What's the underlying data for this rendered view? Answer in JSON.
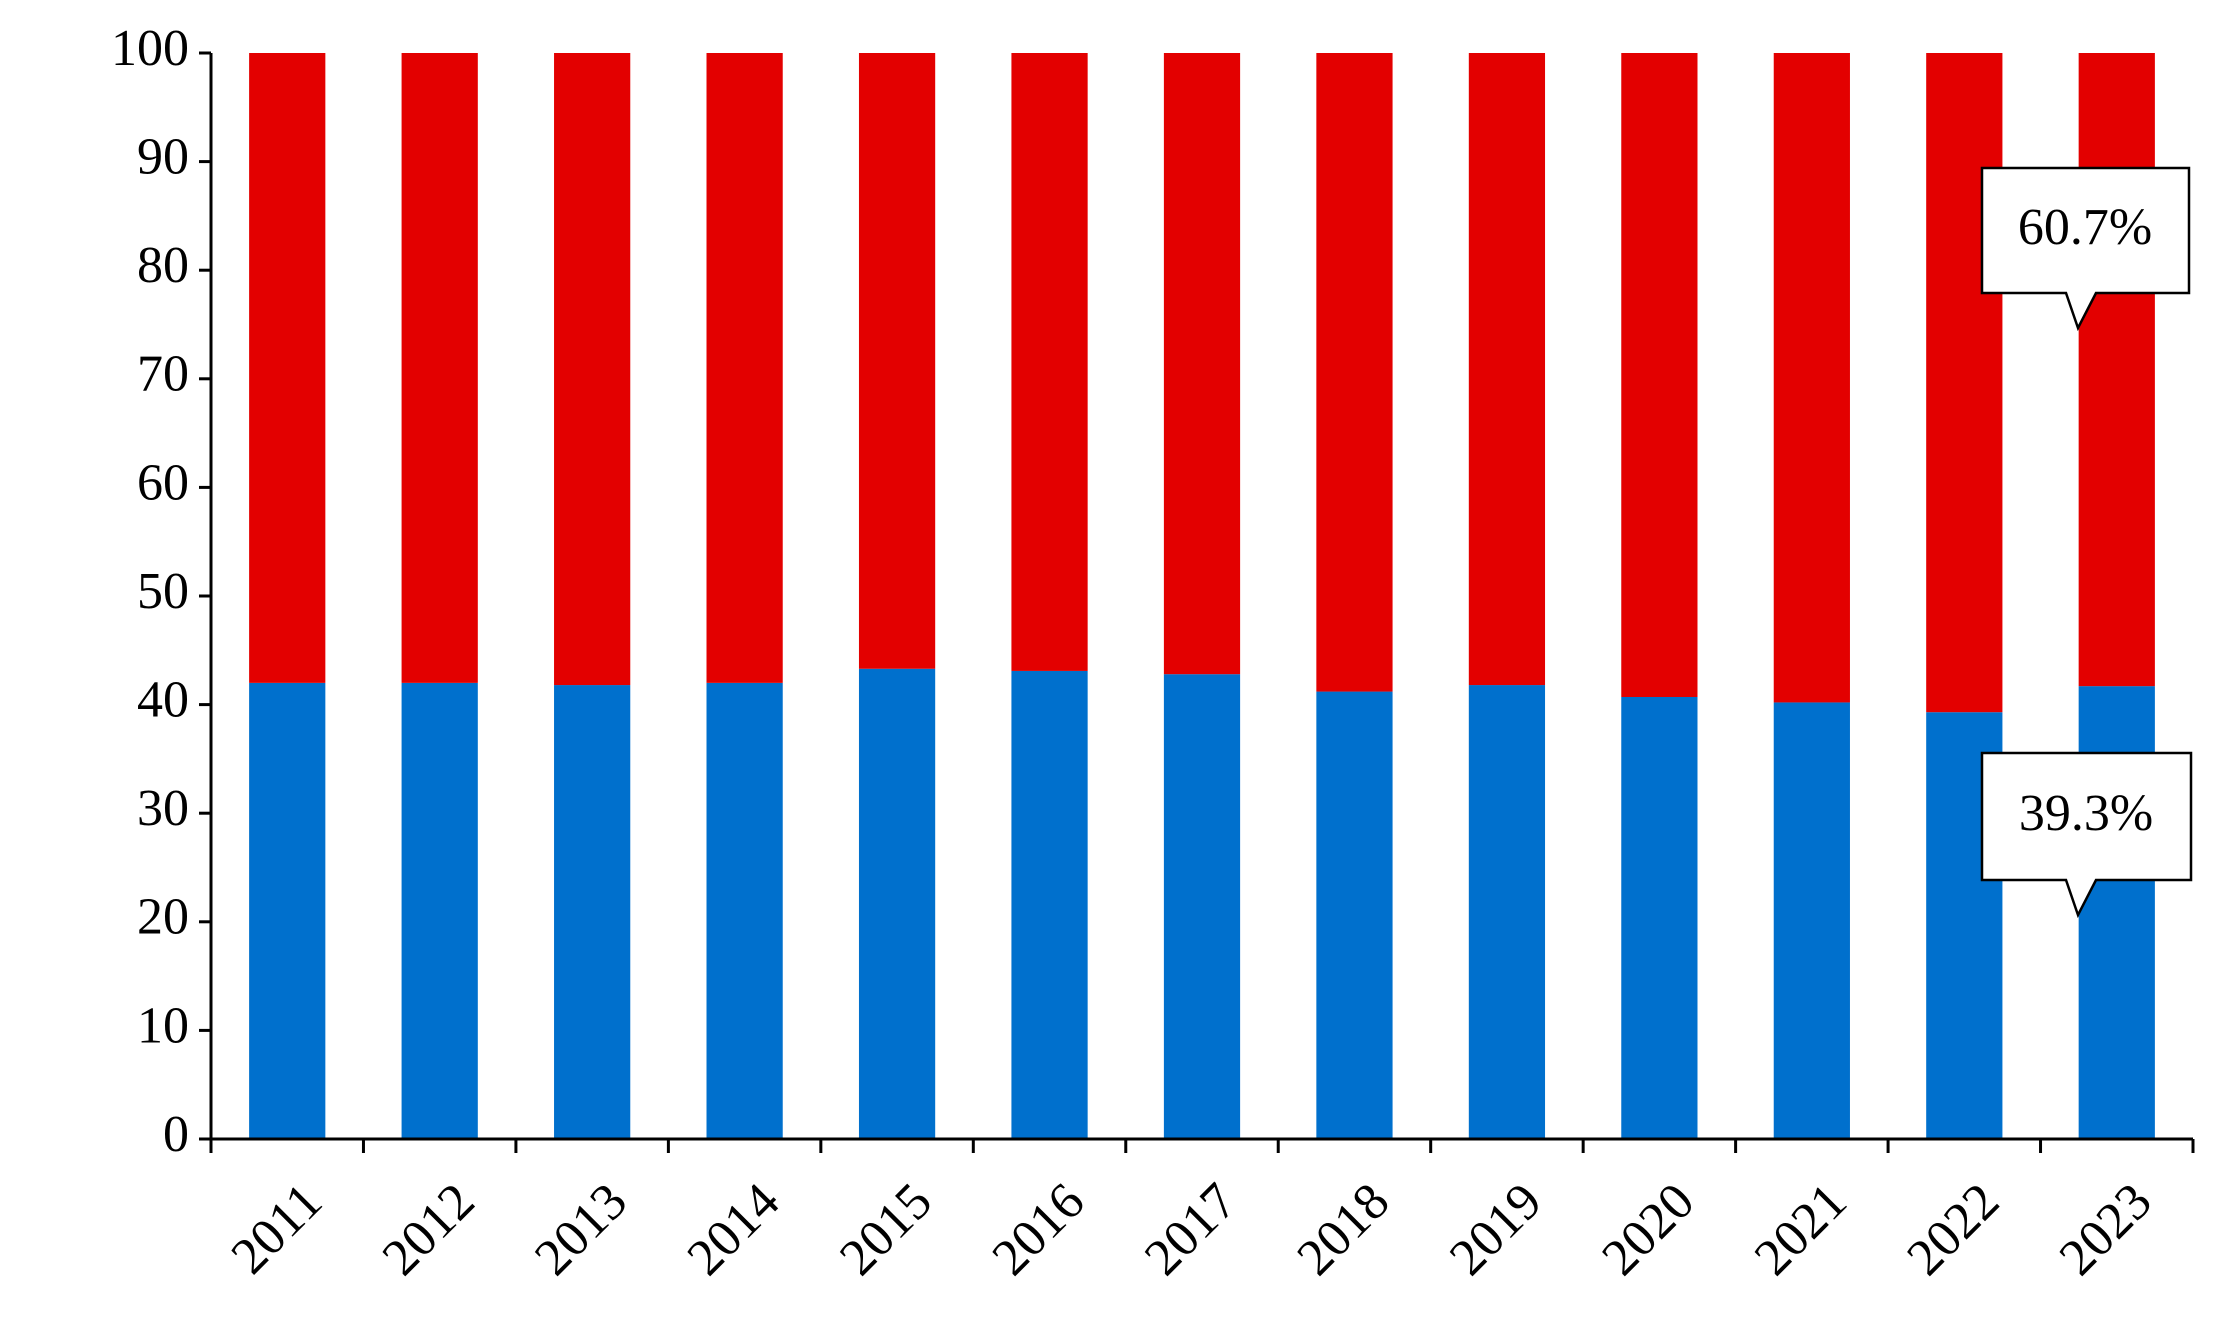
{
  "chart_data": {
    "type": "stacked_bar",
    "categories": [
      "2011",
      "2012",
      "2013",
      "2014",
      "2015",
      "2016",
      "2017",
      "2018",
      "2019",
      "2020",
      "2021",
      "2022",
      "2023"
    ],
    "series": [
      {
        "color": "#0070cd",
        "values": [
          42.0,
          42.0,
          41.8,
          42.0,
          43.3,
          43.1,
          42.8,
          41.2,
          41.8,
          40.7,
          40.2,
          39.3,
          41.7
        ]
      },
      {
        "color": "#e30000",
        "values": [
          58.0,
          58.0,
          58.2,
          58.0,
          56.7,
          56.9,
          57.2,
          58.8,
          58.2,
          59.3,
          59.8,
          60.7,
          58.3
        ]
      }
    ],
    "ylim": [
      0,
      100
    ],
    "yticks": [
      0,
      10,
      20,
      30,
      40,
      50,
      60,
      70,
      80,
      90,
      100
    ],
    "annotations": [
      "60.7%",
      "39.3%"
    ]
  }
}
